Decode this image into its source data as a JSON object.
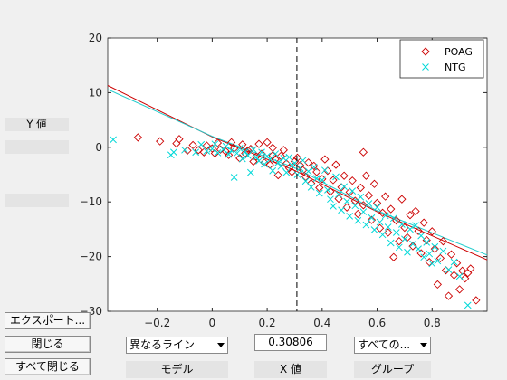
{
  "side_labels": {
    "y_value": "Y 値",
    "blank1": "",
    "blank2": ""
  },
  "buttons": {
    "export": "エクスポート...",
    "close": "閉じる",
    "close_all": "すべて閉じる"
  },
  "controls": {
    "line_type": "異なるライン",
    "x_value": "0.30806",
    "group_select": "すべての...",
    "model_label": "モデル",
    "x_label": "X 値",
    "group_label": "グループ"
  },
  "colors": {
    "poag": "#cc0000",
    "ntg": "#00d8d8",
    "poag_line": "#cc0000",
    "ntg_line": "#22cccc"
  },
  "chart_data": {
    "type": "scatter",
    "xlim": [
      -0.38,
      1.0
    ],
    "ylim": [
      -30,
      20
    ],
    "xticks": [
      -0.2,
      0,
      0.2,
      0.4,
      0.6,
      0.8
    ],
    "xtick_labels": [
      "−0.2",
      "0",
      "0.2",
      "0.4",
      "0.6",
      "0.8"
    ],
    "yticks": [
      20,
      10,
      0,
      -10,
      -20,
      -30
    ],
    "ytick_labels": [
      "20",
      "10",
      "0",
      "−10",
      "−20",
      "−30"
    ],
    "vline_x": 0.30806,
    "legend_position": "top-right",
    "series": [
      {
        "name": "POAG",
        "marker": "diamond",
        "line": [
          [
            -0.38,
            11.3
          ],
          [
            0.0,
            1.9
          ],
          [
            0.30806,
            -4.4
          ],
          [
            0.6,
            -11.8
          ],
          [
            1.0,
            -20.6
          ]
        ],
        "points": [
          [
            -0.27,
            1.8
          ],
          [
            -0.19,
            1.1
          ],
          [
            -0.13,
            0.7
          ],
          [
            -0.12,
            1.5
          ],
          [
            -0.09,
            -0.6
          ],
          [
            -0.07,
            0.4
          ],
          [
            -0.05,
            -0.5
          ],
          [
            -0.03,
            -0.9
          ],
          [
            -0.02,
            0.3
          ],
          [
            0.0,
            -0.2
          ],
          [
            0.01,
            -1.1
          ],
          [
            0.02,
            0.8
          ],
          [
            0.03,
            -0.4
          ],
          [
            0.05,
            -0.8
          ],
          [
            0.06,
            -1.4
          ],
          [
            0.07,
            0.9
          ],
          [
            0.08,
            -0.2
          ],
          [
            0.1,
            -2.0
          ],
          [
            0.11,
            0.5
          ],
          [
            0.12,
            -1.1
          ],
          [
            0.13,
            -0.6
          ],
          [
            0.14,
            -0.3
          ],
          [
            0.15,
            -2.6
          ],
          [
            0.16,
            -1.7
          ],
          [
            0.17,
            0.6
          ],
          [
            0.18,
            -1.2
          ],
          [
            0.19,
            -2.8
          ],
          [
            0.2,
            0.9
          ],
          [
            0.21,
            -3.2
          ],
          [
            0.22,
            -1.5
          ],
          [
            0.22,
            -0.1
          ],
          [
            0.23,
            -2.2
          ],
          [
            0.24,
            -5.1
          ],
          [
            0.25,
            -1.6
          ],
          [
            0.26,
            -0.5
          ],
          [
            0.27,
            -3.0
          ],
          [
            0.28,
            -3.8
          ],
          [
            0.29,
            -4.5
          ],
          [
            0.3,
            -2.6
          ],
          [
            0.31,
            -1.9
          ],
          [
            0.32,
            -3.3
          ],
          [
            0.33,
            -4.2
          ],
          [
            0.34,
            -5.4
          ],
          [
            0.35,
            -2.8
          ],
          [
            0.36,
            -6.6
          ],
          [
            0.37,
            -3.4
          ],
          [
            0.38,
            -4.5
          ],
          [
            0.39,
            -7.4
          ],
          [
            0.4,
            -5.8
          ],
          [
            0.41,
            -2.2
          ],
          [
            0.42,
            -4.3
          ],
          [
            0.43,
            -8.1
          ],
          [
            0.44,
            -6.0
          ],
          [
            0.45,
            -3.2
          ],
          [
            0.46,
            -9.4
          ],
          [
            0.47,
            -7.3
          ],
          [
            0.48,
            -5.2
          ],
          [
            0.49,
            -11.0
          ],
          [
            0.5,
            -8.2
          ],
          [
            0.51,
            -6.1
          ],
          [
            0.52,
            -9.8
          ],
          [
            0.53,
            -12.2
          ],
          [
            0.54,
            -7.4
          ],
          [
            0.55,
            -0.9
          ],
          [
            0.55,
            -10.6
          ],
          [
            0.56,
            -5.2
          ],
          [
            0.57,
            -8.8
          ],
          [
            0.58,
            -13.3
          ],
          [
            0.59,
            -6.7
          ],
          [
            0.6,
            -10.2
          ],
          [
            0.61,
            -14.8
          ],
          [
            0.62,
            -12.0
          ],
          [
            0.63,
            -9.0
          ],
          [
            0.64,
            -15.6
          ],
          [
            0.65,
            -11.3
          ],
          [
            0.66,
            -20.1
          ],
          [
            0.67,
            -13.4
          ],
          [
            0.68,
            -17.2
          ],
          [
            0.69,
            -9.5
          ],
          [
            0.7,
            -14.7
          ],
          [
            0.71,
            -16.5
          ],
          [
            0.72,
            -12.4
          ],
          [
            0.73,
            -18.1
          ],
          [
            0.74,
            -11.7
          ],
          [
            0.75,
            -15.3
          ],
          [
            0.76,
            -19.4
          ],
          [
            0.77,
            -13.8
          ],
          [
            0.78,
            -17.0
          ],
          [
            0.79,
            -21.0
          ],
          [
            0.8,
            -15.4
          ],
          [
            0.81,
            -18.6
          ],
          [
            0.82,
            -25.1
          ],
          [
            0.83,
            -20.3
          ],
          [
            0.84,
            -17.2
          ],
          [
            0.85,
            -22.5
          ],
          [
            0.86,
            -27.2
          ],
          [
            0.87,
            -19.6
          ],
          [
            0.88,
            -23.4
          ],
          [
            0.89,
            -21.2
          ],
          [
            0.9,
            -26.0
          ],
          [
            0.91,
            -22.6
          ],
          [
            0.92,
            -24.0
          ],
          [
            0.93,
            -23.0
          ],
          [
            0.94,
            -22.2
          ],
          [
            0.96,
            -28.0
          ]
        ]
      },
      {
        "name": "NTG",
        "marker": "x",
        "line": [
          [
            -0.38,
            10.6
          ],
          [
            0.0,
            2.0
          ],
          [
            0.30806,
            -3.9
          ],
          [
            0.6,
            -11.6
          ],
          [
            1.0,
            -19.7
          ]
        ],
        "points": [
          [
            -0.36,
            1.4
          ],
          [
            -0.15,
            -1.4
          ],
          [
            -0.14,
            -0.9
          ],
          [
            -0.1,
            -0.5
          ],
          [
            -0.06,
            -0.9
          ],
          [
            -0.04,
            0.5
          ],
          [
            -0.02,
            -0.7
          ],
          [
            0.0,
            -0.3
          ],
          [
            0.01,
            0.6
          ],
          [
            0.02,
            -1.0
          ],
          [
            0.04,
            -0.4
          ],
          [
            0.05,
            0.2
          ],
          [
            0.06,
            -1.3
          ],
          [
            0.07,
            -0.6
          ],
          [
            0.08,
            -5.5
          ],
          [
            0.09,
            -1.1
          ],
          [
            0.1,
            -0.2
          ],
          [
            0.11,
            -2.1
          ],
          [
            0.12,
            -0.8
          ],
          [
            0.13,
            -1.5
          ],
          [
            0.14,
            -4.6
          ],
          [
            0.15,
            -0.4
          ],
          [
            0.16,
            -1.8
          ],
          [
            0.17,
            -2.5
          ],
          [
            0.18,
            -0.9
          ],
          [
            0.19,
            -3.1
          ],
          [
            0.2,
            -1.6
          ],
          [
            0.21,
            -2.2
          ],
          [
            0.22,
            -4.3
          ],
          [
            0.23,
            -1.2
          ],
          [
            0.24,
            -2.8
          ],
          [
            0.25,
            -3.5
          ],
          [
            0.26,
            -2.0
          ],
          [
            0.27,
            -4.6
          ],
          [
            0.28,
            -1.8
          ],
          [
            0.29,
            -3.3
          ],
          [
            0.3,
            -2.9
          ],
          [
            0.31,
            -5.0
          ],
          [
            0.32,
            -3.8
          ],
          [
            0.33,
            -2.4
          ],
          [
            0.34,
            -6.2
          ],
          [
            0.35,
            -4.4
          ],
          [
            0.36,
            -7.3
          ],
          [
            0.37,
            -3.6
          ],
          [
            0.38,
            -5.7
          ],
          [
            0.39,
            -8.4
          ],
          [
            0.4,
            -6.0
          ],
          [
            0.41,
            -4.2
          ],
          [
            0.42,
            -7.8
          ],
          [
            0.43,
            -9.5
          ],
          [
            0.44,
            -10.8
          ],
          [
            0.45,
            -5.4
          ],
          [
            0.46,
            -8.6
          ],
          [
            0.47,
            -11.5
          ],
          [
            0.48,
            -7.2
          ],
          [
            0.49,
            -9.9
          ],
          [
            0.5,
            -12.6
          ],
          [
            0.51,
            -8.0
          ],
          [
            0.52,
            -10.7
          ],
          [
            0.53,
            -13.4
          ],
          [
            0.54,
            -9.1
          ],
          [
            0.55,
            -11.8
          ],
          [
            0.56,
            -14.2
          ],
          [
            0.57,
            -10.3
          ],
          [
            0.58,
            -12.9
          ],
          [
            0.59,
            -15.1
          ],
          [
            0.6,
            -11.0
          ],
          [
            0.61,
            -13.7
          ],
          [
            0.62,
            -16.0
          ],
          [
            0.63,
            -12.5
          ],
          [
            0.64,
            -14.6
          ],
          [
            0.65,
            -17.5
          ],
          [
            0.66,
            -13.0
          ],
          [
            0.67,
            -15.6
          ],
          [
            0.68,
            -18.3
          ],
          [
            0.69,
            -14.1
          ],
          [
            0.7,
            -16.8
          ],
          [
            0.71,
            -19.2
          ],
          [
            0.72,
            -15.0
          ],
          [
            0.73,
            -17.7
          ],
          [
            0.74,
            -14.3
          ],
          [
            0.75,
            -18.6
          ],
          [
            0.76,
            -16.2
          ],
          [
            0.77,
            -20.1
          ],
          [
            0.78,
            -17.4
          ],
          [
            0.79,
            -19.5
          ],
          [
            0.8,
            -21.3
          ],
          [
            0.81,
            -18.2
          ],
          [
            0.82,
            -20.8
          ],
          [
            0.84,
            -19.0
          ],
          [
            0.86,
            -22.4
          ],
          [
            0.88,
            -21.0
          ],
          [
            0.9,
            -23.6
          ],
          [
            0.93,
            -28.9
          ]
        ]
      }
    ]
  }
}
